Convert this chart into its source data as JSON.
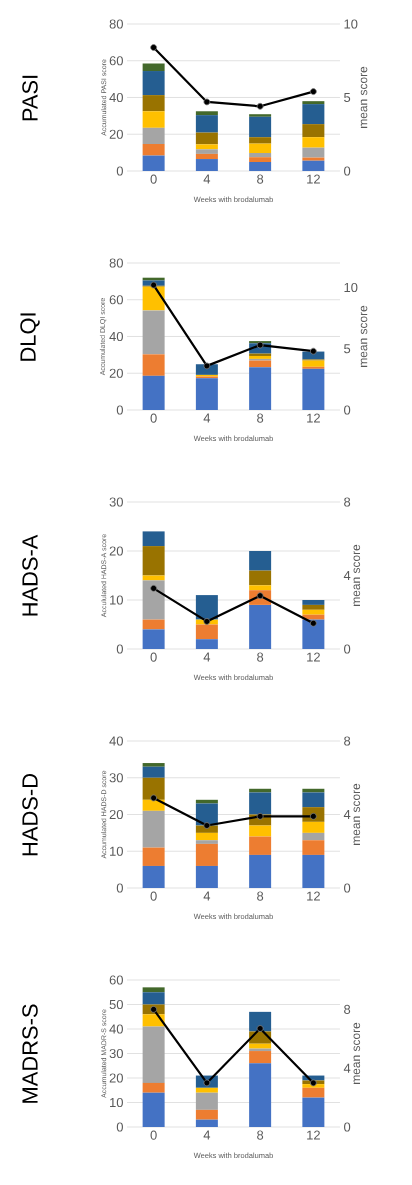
{
  "chart_data": [
    {
      "type": "bar",
      "title": "PASI",
      "xlabel": "Weeks with brodalumab",
      "ylabel": "Accumulated PASI score",
      "y2label": "mean score",
      "categories": [
        "0",
        "4",
        "8",
        "12"
      ],
      "stacked": true,
      "grid": "y",
      "marker": "circle",
      "ylim": [
        0,
        80
      ],
      "yticks": [
        0,
        20,
        40,
        60,
        80
      ],
      "y2lim": [
        0,
        10
      ],
      "y2ticks": [
        0,
        5,
        10
      ],
      "series": [
        {
          "color": "#4472c4",
          "values": [
            8.4,
            6.5,
            4.9,
            5.6
          ]
        },
        {
          "color": "#ed7d31",
          "values": [
            6.3,
            2.8,
            2.6,
            1.7
          ]
        },
        {
          "color": "#a5a5a5",
          "values": [
            8.8,
            2.5,
            2.3,
            5.4
          ]
        },
        {
          "color": "#ffc000",
          "values": [
            9.0,
            2.7,
            5.1,
            5.7
          ]
        },
        {
          "color": "#997300",
          "values": [
            8.8,
            6.4,
            3.5,
            7.1
          ]
        },
        {
          "color": "#255e91",
          "values": [
            13.1,
            9.5,
            11.1,
            10.9
          ]
        },
        {
          "color": "#43682b",
          "values": [
            4.1,
            2.1,
            1.4,
            1.6
          ]
        },
        {
          "type": "line",
          "axis": "y2",
          "color": "#000000",
          "values": [
            8.4,
            4.7,
            4.4,
            5.4
          ]
        }
      ]
    },
    {
      "type": "bar",
      "title": "DLQI",
      "xlabel": "Weeks with brodalumab",
      "ylabel": "Accumulated DLQI score",
      "y2label": "mean score",
      "categories": [
        "0",
        "4",
        "8",
        "12"
      ],
      "stacked": true,
      "grid": "y",
      "marker": "circle",
      "ylim": [
        0,
        80
      ],
      "yticks": [
        0,
        20,
        40,
        60,
        80
      ],
      "y2lim": [
        0,
        12
      ],
      "y2ticks": [
        0,
        5,
        10
      ],
      "series": [
        {
          "color": "#4472c4",
          "values": [
            18.6,
            17.3,
            23.3,
            22.4
          ]
        },
        {
          "color": "#ed7d31",
          "values": [
            11.7,
            0.9,
            3.6,
            1.1
          ]
        },
        {
          "color": "#a5a5a5",
          "values": [
            23.9,
            0,
            0.9,
            null
          ]
        },
        {
          "color": "#ffc000",
          "values": [
            12.9,
            0.9,
            1.6,
            3.4
          ]
        },
        {
          "color": "#997300",
          "values": [
            0.5,
            0,
            1.3,
            0.6
          ]
        },
        {
          "color": "#255e91",
          "values": [
            2.9,
            5.8,
            5.6,
            4.3
          ]
        },
        {
          "color": "#43682b",
          "values": [
            1.5,
            null,
            1.2,
            null
          ]
        },
        {
          "type": "line",
          "axis": "y2",
          "color": "#000000",
          "values": [
            10.2,
            3.6,
            5.3,
            4.8
          ]
        }
      ]
    },
    {
      "type": "bar",
      "title": "HADS-A",
      "xlabel": "Weeks with brodalumab",
      "ylabel": "Accululated HADS-A score",
      "y2label": "mean score",
      "categories": [
        "0",
        "4",
        "8",
        "12"
      ],
      "stacked": true,
      "grid": "y",
      "marker": "circle",
      "ylim": [
        0,
        30
      ],
      "yticks": [
        0,
        10,
        20,
        30
      ],
      "y2lim": [
        0,
        8
      ],
      "y2ticks": [
        0,
        4,
        8
      ],
      "series": [
        {
          "color": "#4472c4",
          "values": [
            4,
            2,
            9,
            6
          ]
        },
        {
          "color": "#ed7d31",
          "values": [
            2,
            3,
            3,
            1
          ]
        },
        {
          "color": "#a5a5a5",
          "values": [
            8,
            0,
            0,
            0
          ]
        },
        {
          "color": "#ffc000",
          "values": [
            1,
            1,
            1,
            1
          ]
        },
        {
          "color": "#997300",
          "values": [
            6,
            0,
            3,
            1
          ]
        },
        {
          "color": "#255e91",
          "values": [
            3,
            5,
            4,
            1
          ]
        },
        {
          "color": "#43682b",
          "values": [
            0,
            0,
            0,
            0
          ]
        },
        {
          "type": "line",
          "axis": "y2",
          "color": "#000000",
          "values": [
            3.3,
            1.5,
            2.9,
            1.4
          ]
        }
      ]
    },
    {
      "type": "bar",
      "title": "HADS-D",
      "xlabel": "Weeks with brodalumab",
      "ylabel": "Accumulated HADS-D score",
      "y2label": "mean score",
      "categories": [
        "0",
        "4",
        "8",
        "12"
      ],
      "stacked": true,
      "grid": "y",
      "marker": "circle",
      "ylim": [
        0,
        40
      ],
      "yticks": [
        0,
        10,
        20,
        30,
        40
      ],
      "y2lim": [
        0,
        8
      ],
      "y2ticks": [
        0,
        4,
        8
      ],
      "series": [
        {
          "color": "#4472c4",
          "values": [
            6,
            6,
            9,
            9
          ]
        },
        {
          "color": "#ed7d31",
          "values": [
            5,
            6,
            5,
            4
          ]
        },
        {
          "color": "#a5a5a5",
          "values": [
            10,
            1,
            0,
            2
          ]
        },
        {
          "color": "#ffc000",
          "values": [
            3,
            2,
            3,
            3
          ]
        },
        {
          "color": "#997300",
          "values": [
            6,
            2,
            3,
            4
          ]
        },
        {
          "color": "#255e91",
          "values": [
            3,
            6,
            6,
            4
          ]
        },
        {
          "color": "#43682b",
          "values": [
            1,
            1,
            1,
            1
          ]
        },
        {
          "type": "line",
          "axis": "y2",
          "color": "#000000",
          "values": [
            4.9,
            3.4,
            3.9,
            3.9
          ]
        }
      ]
    },
    {
      "type": "bar",
      "title": "MADRS-S",
      "xlabel": "Weeks with brodalumab",
      "ylabel": "Accumulated MADR-S score",
      "y2label": "mean score",
      "categories": [
        "0",
        "4",
        "8",
        "12"
      ],
      "stacked": true,
      "grid": "y",
      "marker": "circle",
      "ylim": [
        0,
        60
      ],
      "yticks": [
        0,
        10,
        20,
        30,
        40,
        50,
        60
      ],
      "y2lim": [
        0,
        10
      ],
      "y2ticks": [
        0,
        4,
        8
      ],
      "series": [
        {
          "color": "#4472c4",
          "values": [
            14,
            3,
            26,
            12
          ]
        },
        {
          "color": "#ed7d31",
          "values": [
            4,
            4,
            5,
            4
          ]
        },
        {
          "color": "#a5a5a5",
          "values": [
            23,
            7,
            1,
            0
          ]
        },
        {
          "color": "#ffc000",
          "values": [
            5,
            2,
            2,
            1.5
          ]
        },
        {
          "color": "#997300",
          "values": [
            4,
            0,
            5,
            1.5
          ]
        },
        {
          "color": "#255e91",
          "values": [
            5,
            5,
            8,
            2
          ]
        },
        {
          "color": "#43682b",
          "values": [
            2,
            0,
            0,
            0
          ]
        },
        {
          "type": "line",
          "axis": "y2",
          "color": "#000000",
          "values": [
            8.0,
            3.0,
            6.7,
            3.0
          ]
        }
      ]
    }
  ]
}
